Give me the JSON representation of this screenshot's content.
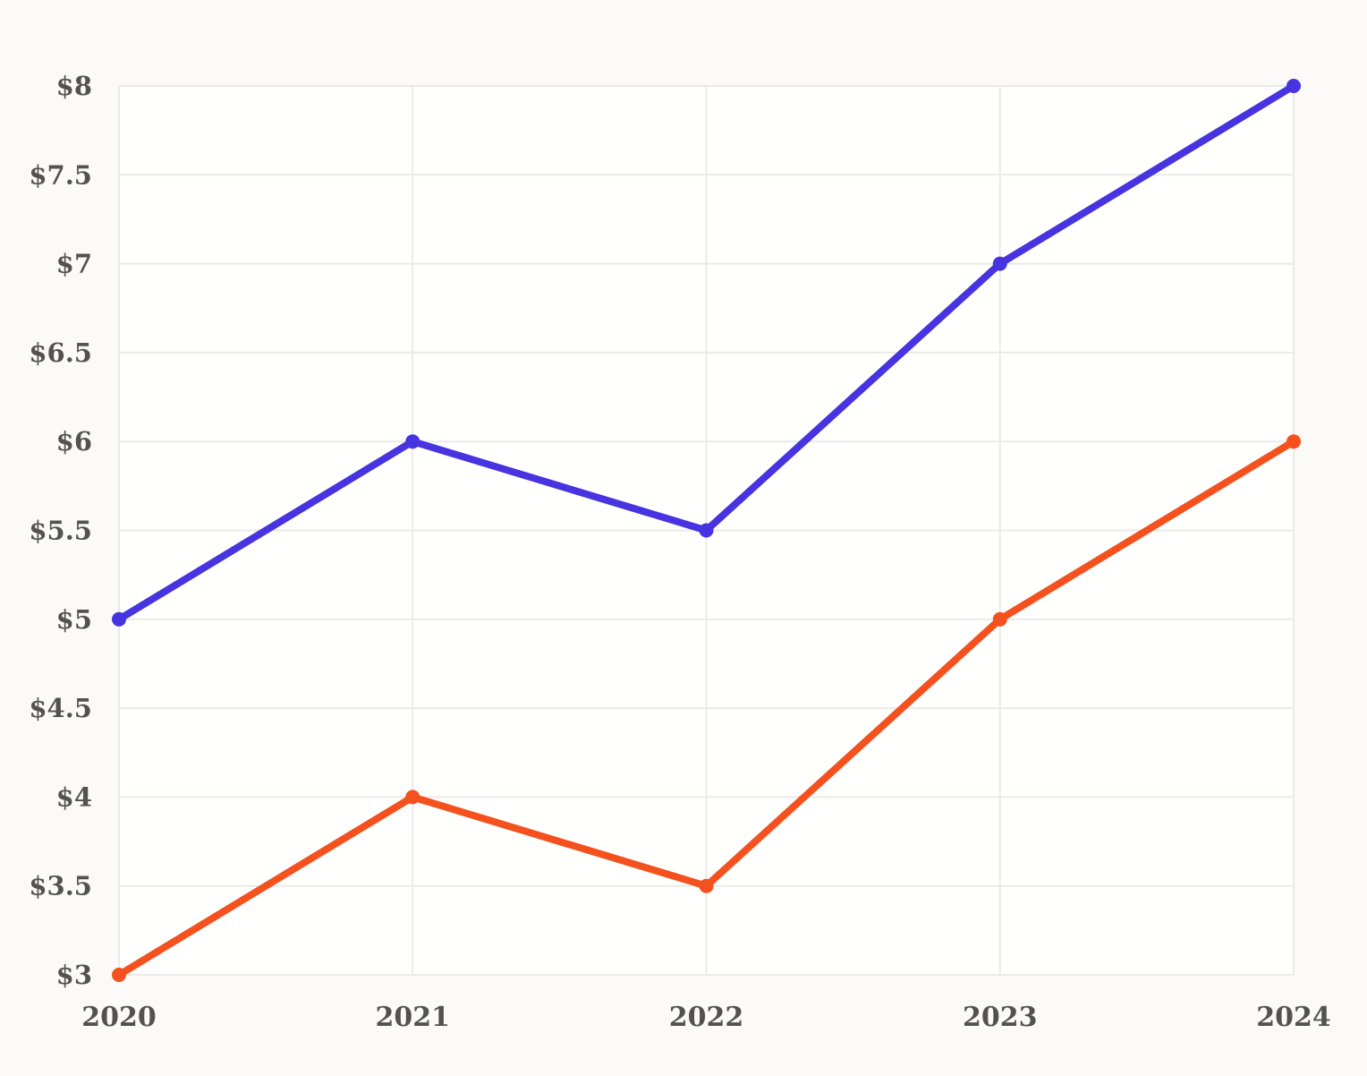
{
  "chart_data": {
    "type": "line",
    "title": "",
    "xlabel": "",
    "ylabel": "",
    "legend": "none",
    "grid": true,
    "x": [
      "2020",
      "2021",
      "2022",
      "2023",
      "2024"
    ],
    "series": [
      {
        "name": "blue-series",
        "color": "#4733E0",
        "values": [
          5,
          6,
          5.5,
          7,
          8
        ]
      },
      {
        "name": "orange-series",
        "color": "#F4511E",
        "values": [
          3,
          4,
          3.5,
          5,
          6
        ]
      }
    ],
    "y_axis": {
      "min": 3,
      "max": 8,
      "step": 0.5,
      "tick_prefix": "$",
      "tick_labels": [
        "$3",
        "$3.5",
        "$4",
        "$4.5",
        "$5",
        "$5.5",
        "$6",
        "$6.5",
        "$7",
        "$7.5",
        "$8"
      ]
    },
    "x_axis": {
      "tick_labels": [
        "2020",
        "2021",
        "2022",
        "2023",
        "2024"
      ]
    },
    "styles": {
      "background": "#fbfaf8",
      "plot_background": "#fffffe",
      "grid_color": "#ebeae8",
      "tick_color": "#525252",
      "line_width": 8,
      "marker_radius": 8
    }
  }
}
